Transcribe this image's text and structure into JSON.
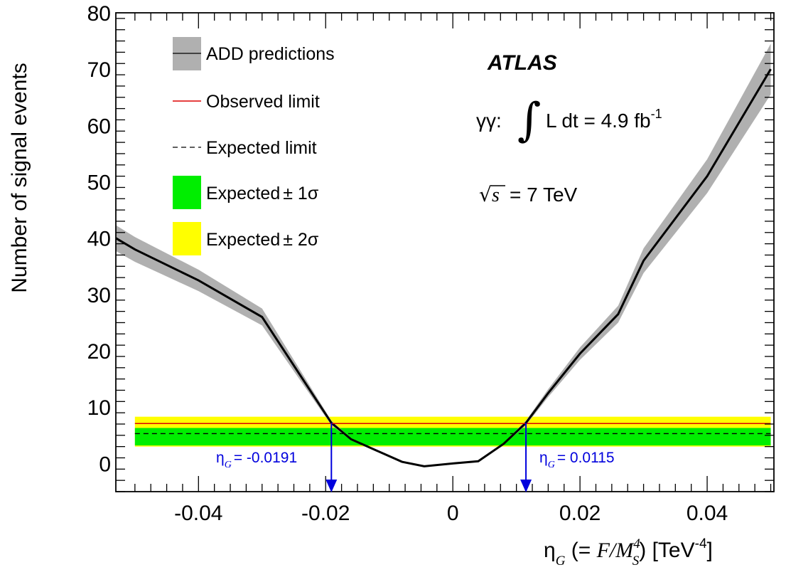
{
  "chart_data": {
    "type": "line",
    "experiment": "ATLAS",
    "channel_label": "γγ:",
    "luminosity_label": "L dt = 4.9 fb",
    "luminosity_exp": "-1",
    "energy_label": "= 7 TeV",
    "energy_symbol": "s",
    "xlabel_parts": {
      "eta": "η",
      "eta_sub": "G",
      "open": " (= ",
      "F": "F/M",
      "M_sup": "4",
      "M_sub": "S",
      "close": ") [TeV",
      "tev_exp": "-4",
      "end": "]"
    },
    "ylabel": "Number of signal events",
    "xlim": [
      -0.053,
      0.0505
    ],
    "ylim": [
      -5,
      80
    ],
    "xticks": [
      -0.04,
      -0.02,
      0,
      0.02,
      0.04
    ],
    "xtick_labels": [
      "-0.04",
      "-0.02",
      "0",
      "0.02",
      "0.04"
    ],
    "yticks": [
      0,
      10,
      20,
      30,
      40,
      50,
      60,
      70,
      80
    ],
    "ytick_labels": [
      "0",
      "10",
      "20",
      "30",
      "40",
      "50",
      "60",
      "70",
      "80"
    ],
    "legend": {
      "add": "ADD predictions",
      "observed": "Observed limit",
      "expected": "Expected limit",
      "one_sigma_text": "Expected",
      "one_sigma_pm": "± 1σ",
      "two_sigma_text": "Expected",
      "two_sigma_pm": "± 2σ"
    },
    "series": [
      {
        "name": "ADD predictions",
        "x": [
          -0.053,
          -0.05,
          -0.04,
          -0.03,
          -0.0191,
          -0.016,
          -0.012,
          -0.008,
          -0.0045,
          0.0,
          0.004,
          0.008,
          0.0115,
          0.015,
          0.02,
          0.026,
          0.03,
          0.04,
          0.05
        ],
        "y": [
          40,
          38,
          32.5,
          26,
          7.2,
          4.3,
          2.3,
          0.3,
          -0.5,
          0,
          0.4,
          3.5,
          7.2,
          12.5,
          19.5,
          26.5,
          36,
          51,
          70
        ],
        "band_half_width": [
          2.3,
          2.2,
          1.9,
          1.5,
          0.4,
          0.2,
          0.1,
          0.05,
          0.05,
          0.05,
          0.05,
          0.2,
          0.4,
          0.7,
          1.1,
          1.5,
          2.2,
          3.0,
          4.5
        ]
      },
      {
        "name": "Observed limit",
        "y": 7.1
      },
      {
        "name": "Expected limit",
        "y": 5.3
      }
    ],
    "sigma_band_x_range": [
      -0.05,
      0.05
    ],
    "one_sigma_band": [
      3.2,
      6.3
    ],
    "two_sigma_band": [
      3.0,
      8.3
    ],
    "colors": {
      "band": "#b0b0b0",
      "observed": "#dd0000",
      "one_sigma": "#00ee00",
      "two_sigma": "#ffff00",
      "annotation": "#0000dd"
    },
    "annotations": [
      {
        "x": -0.0191,
        "text": "= -0.0191",
        "eta": "η",
        "sub": "G"
      },
      {
        "x": 0.0115,
        "text": "= 0.0115",
        "eta": "η",
        "sub": "G"
      }
    ]
  }
}
